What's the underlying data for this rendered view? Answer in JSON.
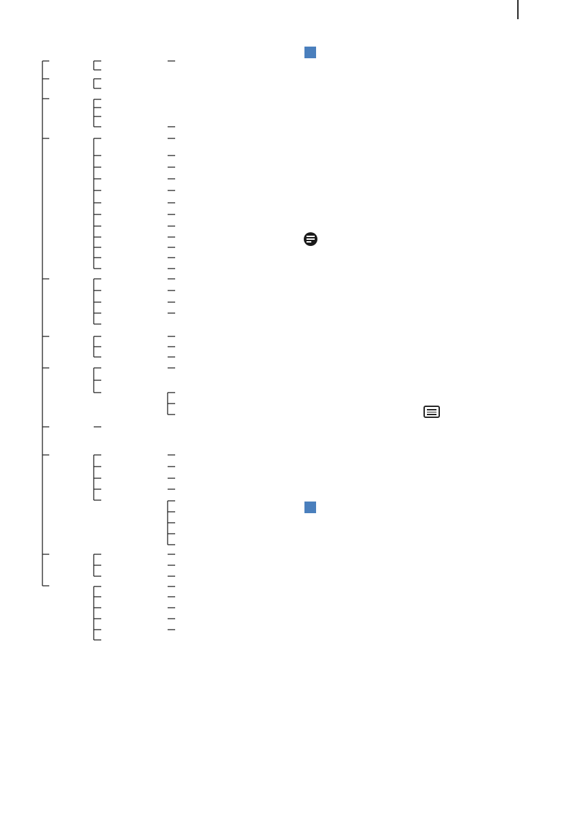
{
  "page": {
    "accent_color": "#4a7fbd"
  },
  "icons": [
    "section-marker-icon",
    "note-icon",
    "menu-icon",
    "section-marker-icon"
  ]
}
